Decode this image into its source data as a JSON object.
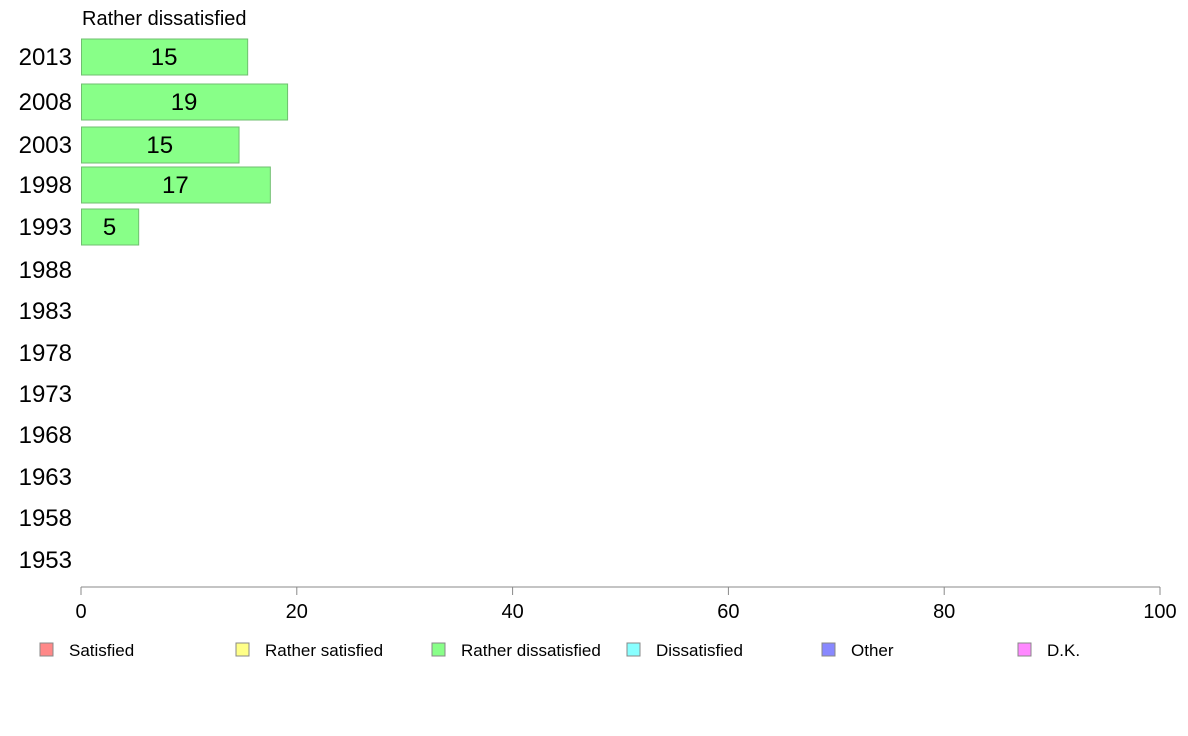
{
  "chart_data": {
    "type": "bar",
    "orientation": "horizontal",
    "title": "Rather dissatisfied",
    "categories": [
      "2013",
      "2008",
      "2003",
      "1998",
      "1993",
      "1988",
      "1983",
      "1978",
      "1973",
      "1968",
      "1963",
      "1958",
      "1953"
    ],
    "values": [
      15.4,
      19.1,
      14.6,
      17.5,
      5.3,
      null,
      null,
      null,
      null,
      null,
      null,
      null,
      null
    ],
    "data_labels": [
      "15",
      "19",
      "15",
      "17",
      "5",
      "",
      "",
      "",
      "",
      "",
      "",
      "",
      ""
    ],
    "series_color": "#88FF88",
    "xlim": [
      0,
      100
    ],
    "xticks": [
      0,
      20,
      40,
      60,
      80,
      100
    ],
    "grid": false,
    "legend_placement": "bottom",
    "legend": [
      {
        "label": "Satisfied",
        "color": "#FF8888"
      },
      {
        "label": "Rather satisfied",
        "color": "#FFFF88"
      },
      {
        "label": "Rather dissatisfied",
        "color": "#88FF88"
      },
      {
        "label": "Dissatisfied",
        "color": "#88FFFF"
      },
      {
        "label": "Other",
        "color": "#8888FF"
      },
      {
        "label": "D.K.",
        "color": "#FF88FF"
      }
    ]
  }
}
